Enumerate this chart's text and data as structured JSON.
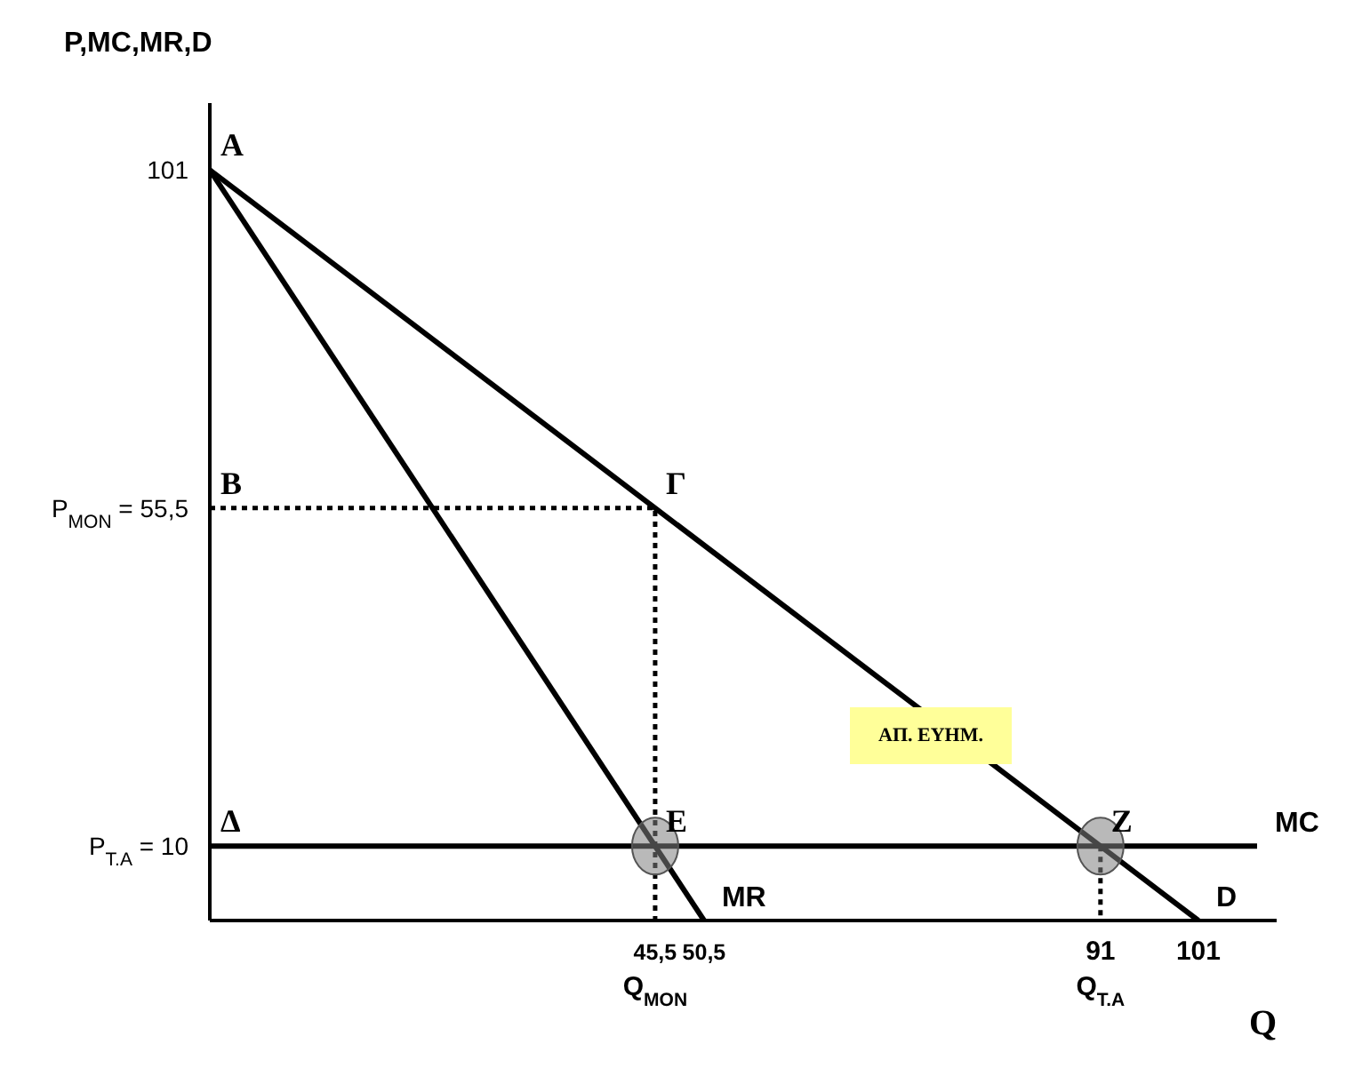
{
  "chart_data": {
    "type": "line",
    "ylabel": "P,MC,MR,D",
    "xlabel": "Q",
    "xlim": [
      0,
      109
    ],
    "ylim": [
      0,
      110
    ],
    "xticks": [
      {
        "value": 45.5,
        "label": "45,5\nQ$_{MON}$"
      },
      {
        "value": 50.5,
        "label": "50,5"
      },
      {
        "value": 91,
        "label": "91\nQ$_{T.A}$"
      },
      {
        "value": 101,
        "label": "101"
      }
    ],
    "yticks": [
      {
        "value": 10,
        "label": "P$_{T.A}$ = 10"
      },
      {
        "value": 55.5,
        "label": "P$_{MON}$ = 55,5"
      },
      {
        "value": 101,
        "label": "101"
      }
    ],
    "grid": false,
    "legend": false,
    "marker": "none",
    "series": [
      {
        "name": "D",
        "color": "#000000",
        "x": [
          0,
          101
        ],
        "values": [
          101,
          0
        ]
      },
      {
        "name": "MR",
        "color": "#000000",
        "x": [
          0,
          50.5
        ],
        "values": [
          101,
          0
        ]
      },
      {
        "name": "MC",
        "color": "#000000",
        "x": [
          0,
          107
        ],
        "values": [
          10,
          10
        ]
      },
      {
        "type": "scatter",
        "marker": "circle",
        "color": "#808080",
        "x": [
          45.5,
          91
        ],
        "values": [
          10,
          10
        ]
      },
      {
        "line_style": "dotted",
        "color": "#000000",
        "x": [
          0,
          45.5,
          45.5
        ],
        "values": [
          55.5,
          55.5,
          0
        ]
      },
      {
        "line_style": "dotted",
        "color": "#000000",
        "x": [
          91,
          91
        ],
        "values": [
          10,
          0
        ]
      }
    ],
    "annotations": [
      {
        "text": "A",
        "x": 0,
        "y": 101
      },
      {
        "text": "B",
        "x": 0,
        "y": 55.5
      },
      {
        "text": "Γ",
        "x": 45.5,
        "y": 55.5
      },
      {
        "text": "Δ",
        "x": 0,
        "y": 10
      },
      {
        "text": "E",
        "x": 45.5,
        "y": 10
      },
      {
        "text": "Z",
        "x": 91,
        "y": 10
      },
      "ΑΠ. ΕΥΗΜ."
    ]
  }
}
